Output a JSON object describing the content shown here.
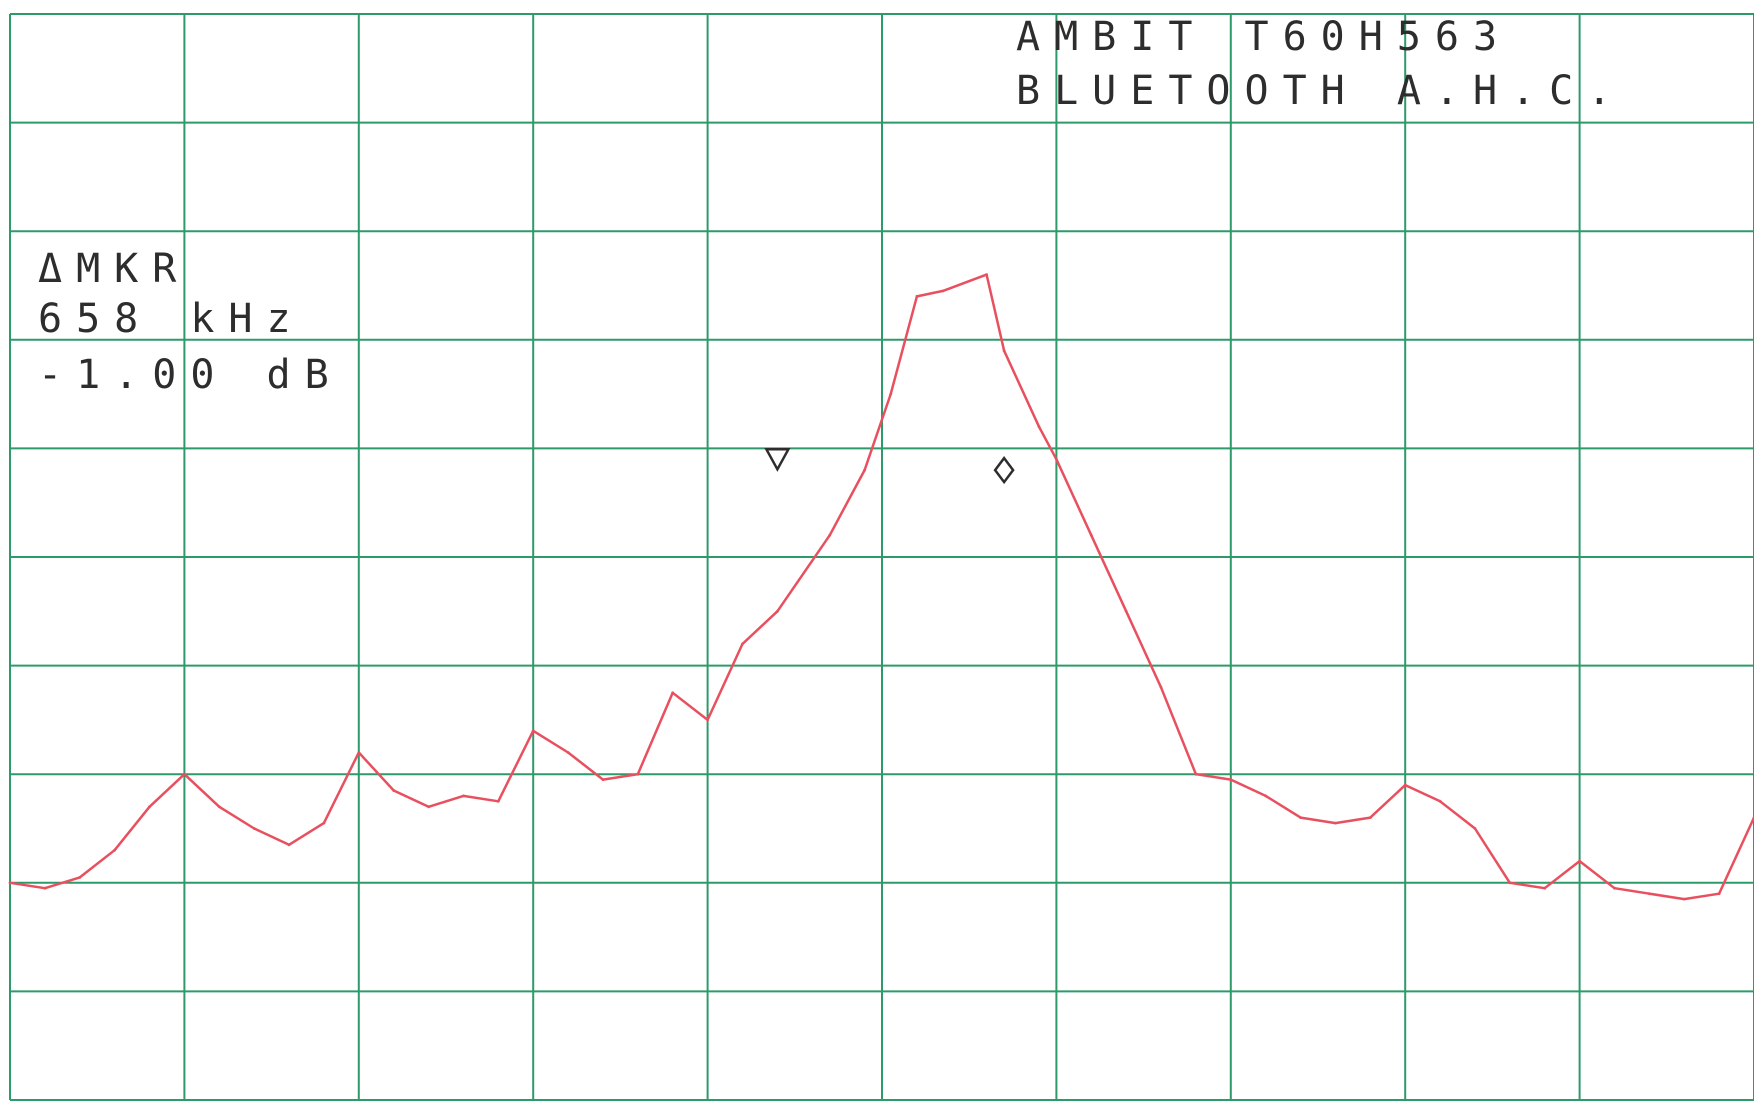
{
  "header": {
    "line1": "AMBIT   T60H563",
    "line2": "BLUETOOTH A.H.C."
  },
  "marker_readout": {
    "label": "ΔMKR",
    "frequency": "658 kHz",
    "level": "-1.00 dB"
  },
  "colors": {
    "grid": "#2e9a6a",
    "trace": "#e8505f",
    "text": "#2d2d2d",
    "background": "#ffffff"
  },
  "chart_data": {
    "type": "line",
    "grid": true,
    "divisions": {
      "x": 10,
      "y": 10
    },
    "xlim": [
      0,
      10
    ],
    "ylim": [
      0,
      10
    ],
    "series": [
      {
        "points": [
          [
            0.0,
            2.0
          ],
          [
            0.2,
            1.95
          ],
          [
            0.4,
            2.05
          ],
          [
            0.6,
            2.3
          ],
          [
            0.8,
            2.7
          ],
          [
            1.0,
            3.0
          ],
          [
            1.2,
            2.7
          ],
          [
            1.4,
            2.5
          ],
          [
            1.6,
            2.35
          ],
          [
            1.8,
            2.55
          ],
          [
            2.0,
            3.2
          ],
          [
            2.2,
            2.85
          ],
          [
            2.4,
            2.7
          ],
          [
            2.6,
            2.8
          ],
          [
            2.8,
            2.75
          ],
          [
            3.0,
            3.4
          ],
          [
            3.2,
            3.2
          ],
          [
            3.4,
            2.95
          ],
          [
            3.6,
            3.0
          ],
          [
            3.8,
            3.75
          ],
          [
            4.0,
            3.5
          ],
          [
            4.2,
            4.2
          ],
          [
            4.4,
            4.5
          ],
          [
            4.7,
            5.2
          ],
          [
            4.9,
            5.8
          ],
          [
            5.05,
            6.5
          ],
          [
            5.2,
            7.4
          ],
          [
            5.35,
            7.45
          ],
          [
            5.6,
            7.6
          ],
          [
            5.7,
            6.9
          ],
          [
            5.9,
            6.2
          ],
          [
            6.0,
            5.9
          ],
          [
            6.2,
            5.2
          ],
          [
            6.4,
            4.5
          ],
          [
            6.6,
            3.8
          ],
          [
            6.8,
            3.0
          ],
          [
            7.0,
            2.95
          ],
          [
            7.2,
            2.8
          ],
          [
            7.4,
            2.6
          ],
          [
            7.6,
            2.55
          ],
          [
            7.8,
            2.6
          ],
          [
            8.0,
            2.9
          ],
          [
            8.2,
            2.75
          ],
          [
            8.4,
            2.5
          ],
          [
            8.6,
            2.0
          ],
          [
            8.8,
            1.95
          ],
          [
            9.0,
            2.2
          ],
          [
            9.2,
            1.95
          ],
          [
            9.4,
            1.9
          ],
          [
            9.6,
            1.85
          ],
          [
            9.8,
            1.9
          ],
          [
            10.0,
            2.6
          ]
        ]
      }
    ],
    "markers": [
      {
        "type": "triangle-down",
        "x": 4.4,
        "y": 5.9
      },
      {
        "type": "diamond",
        "x": 5.7,
        "y": 5.8
      }
    ]
  }
}
